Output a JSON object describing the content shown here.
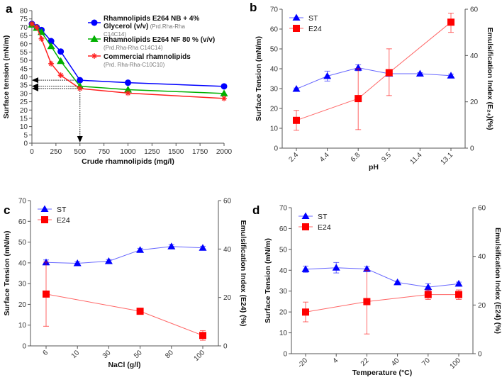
{
  "chart_data": [
    {
      "panel": "a",
      "type": "line",
      "xlabel": "Crude rhamnolipids (mg/l)",
      "ylabel": "Surface tension (mN/m)",
      "xlim": [
        0,
        2000
      ],
      "ylim": [
        0,
        80
      ],
      "xticks": [
        0,
        250,
        500,
        750,
        1000,
        1250,
        1500,
        1750,
        2000
      ],
      "yticks": [
        0,
        5,
        10,
        15,
        20,
        25,
        30,
        35,
        40,
        45,
        50,
        55,
        60,
        65,
        70,
        75,
        80
      ],
      "x": [
        0,
        50,
        100,
        200,
        300,
        500,
        1000,
        2000
      ],
      "series": [
        {
          "legend_lines": [
            [
              "Rhamnolipids E264 NB + 4%",
              ""
            ],
            [
              "Glycerol (v/v)",
              " (Prd.Rha-Rha"
            ],
            [
              "",
              "C14C14)"
            ]
          ],
          "color": "#0000ff",
          "marker": "circle",
          "values": [
            72,
            70,
            68.3,
            61.6,
            55.3,
            38,
            36.5,
            34.3
          ]
        },
        {
          "legend_lines": [
            [
              "Rhamnolipids E264 NF 80 % (v/v)",
              ""
            ],
            [
              "",
              "(Prd.Rha-Rha C14C14)"
            ]
          ],
          "color": "#00b000",
          "marker": "triangle",
          "values": [
            71.5,
            69.5,
            67,
            58.5,
            49.5,
            34.4,
            32.3,
            30
          ]
        },
        {
          "legend_lines": [
            [
              "Commercial rhamnolipids",
              ""
            ],
            [
              "",
              "(Prd. Rha-Rha-C10C10)"
            ]
          ],
          "color": "#ff2020",
          "marker": "star",
          "values": [
            72,
            70,
            63,
            48,
            41,
            33,
            30.2,
            27
          ]
        }
      ],
      "annotations": {
        "arrows_to_y": [
          38,
          34.4,
          33
        ],
        "arrow_down_x": 500
      }
    },
    {
      "panel": "b",
      "type": "line",
      "xlabel": "pH",
      "ylabel": "Surface Tension (mN/m)",
      "y2label": "Emulsification Index (E₂₄)(%)",
      "categories": [
        "2.4",
        "4.4",
        "6.8",
        "9.5",
        "11.4",
        "13.1"
      ],
      "ylim": [
        0,
        70
      ],
      "y2lim": [
        0,
        60
      ],
      "yticks": [
        0,
        10,
        20,
        30,
        40,
        50,
        60,
        70
      ],
      "y2ticks": [
        0,
        20,
        40,
        60
      ],
      "series": [
        {
          "name": "ST",
          "axis": "left",
          "color": "#0000ff",
          "marker": "triangle",
          "values": [
            29.8,
            36.3,
            40.5,
            37.5,
            37.5,
            36.5
          ],
          "errors": [
            0.5,
            2.5,
            1.5,
            0.5,
            0.5,
            0.8
          ]
        },
        {
          "name": "E24",
          "axis": "right",
          "color": "#ff0000",
          "marker": "square",
          "values": [
            12,
            null,
            21.4,
            32.6,
            null,
            54.4
          ],
          "err_low": [
            7.7,
            null,
            8,
            22.7,
            null,
            50
          ],
          "err_high": [
            16.3,
            null,
            34.3,
            42.9,
            null,
            58.3
          ]
        }
      ]
    },
    {
      "panel": "c",
      "type": "line",
      "xlabel": "NaCl (g/l)",
      "ylabel": "Surface Tension (mN/m)",
      "y2label": "Emulsification Index (E24) (%)",
      "categories": [
        "6",
        "10",
        "30",
        "50",
        "80",
        "100"
      ],
      "ylim": [
        0,
        70
      ],
      "y2lim": [
        0,
        60
      ],
      "yticks": [
        0,
        10,
        20,
        30,
        40,
        50,
        60,
        70
      ],
      "y2ticks": [
        0,
        20,
        40,
        60
      ],
      "series": [
        {
          "name": "ST",
          "axis": "left",
          "color": "#0000ff",
          "marker": "triangle",
          "values": [
            40.2,
            39.8,
            40.8,
            46.2,
            47.9,
            47.2
          ],
          "errors": [
            1.2,
            0.8,
            0.8,
            0.8,
            1,
            0.8
          ]
        },
        {
          "name": "E24",
          "axis": "right",
          "color": "#ff0000",
          "marker": "square",
          "values": [
            21.4,
            null,
            null,
            14.3,
            null,
            4.3
          ],
          "err_low": [
            8.1,
            null,
            null,
            14.3,
            null,
            2.3
          ],
          "err_high": [
            34.6,
            null,
            null,
            14.3,
            null,
            6.3
          ]
        }
      ]
    },
    {
      "panel": "d",
      "type": "line",
      "xlabel": "Temperature (°C)",
      "ylabel": "Surface Tension (mN/m)",
      "y2label": "Emulsification Index (E24) (%)",
      "categories": [
        "-20",
        "4",
        "22",
        "40",
        "70",
        "100"
      ],
      "ylim": [
        0,
        70
      ],
      "y2lim": [
        0,
        60
      ],
      "yticks": [
        0,
        10,
        20,
        30,
        40,
        50,
        60,
        70
      ],
      "y2ticks": [
        0,
        20,
        40,
        60
      ],
      "series": [
        {
          "name": "ST",
          "axis": "left",
          "color": "#0000ff",
          "marker": "triangle",
          "values": [
            40.5,
            41.2,
            40.6,
            34.2,
            31.9,
            33.5
          ],
          "errors": [
            1.5,
            2.5,
            1.2,
            0.6,
            1.7,
            0.8
          ]
        },
        {
          "name": "E24",
          "axis": "right",
          "color": "#ff0000",
          "marker": "square",
          "values": [
            17.1,
            null,
            21.4,
            null,
            24.3,
            24.3
          ],
          "err_low": [
            13.1,
            null,
            8.1,
            null,
            22.3,
            22.3
          ],
          "err_high": [
            21.2,
            null,
            34.3,
            null,
            26.2,
            26.2
          ]
        }
      ]
    }
  ]
}
